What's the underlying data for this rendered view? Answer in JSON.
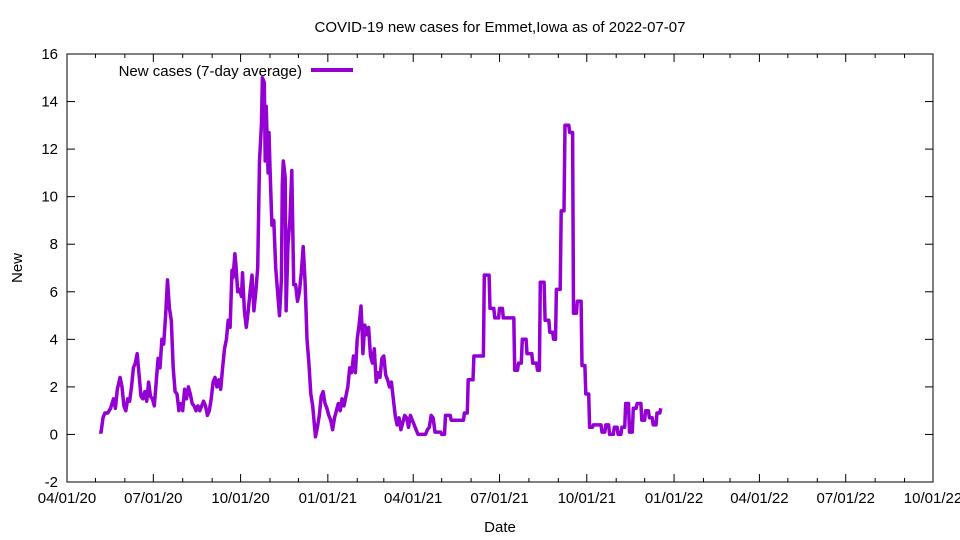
{
  "chart_data": {
    "type": "line",
    "title": "COVID-19 new cases for Emmet,Iowa as of 2022-07-07",
    "xlabel": "Date",
    "ylabel": "New",
    "ylim": [
      -2,
      16
    ],
    "yticks": [
      -2,
      0,
      2,
      4,
      6,
      8,
      10,
      12,
      14,
      16
    ],
    "xlim": [
      "2020-04-01",
      "2022-10-01"
    ],
    "xticks": [
      {
        "date": "2020-04-01",
        "label": "04/01/20"
      },
      {
        "date": "2020-07-01",
        "label": "07/01/20"
      },
      {
        "date": "2020-10-01",
        "label": "10/01/20"
      },
      {
        "date": "2021-01-01",
        "label": "01/01/21"
      },
      {
        "date": "2021-04-01",
        "label": "04/01/21"
      },
      {
        "date": "2021-07-01",
        "label": "07/01/21"
      },
      {
        "date": "2021-10-01",
        "label": "10/01/21"
      },
      {
        "date": "2022-01-01",
        "label": "01/01/22"
      },
      {
        "date": "2022-04-01",
        "label": "04/01/22"
      },
      {
        "date": "2022-07-01",
        "label": "07/01/22"
      },
      {
        "date": "2022-10-01",
        "label": "10/01/22"
      }
    ],
    "grid": false,
    "legend_position": "top-left",
    "series": [
      {
        "name": "New cases (7-day average)",
        "color": "#9400d3",
        "points": [
          [
            "2020-05-05",
            0.1
          ],
          [
            "2020-05-07",
            0.1
          ],
          [
            "2020-05-09",
            0.7
          ],
          [
            "2020-05-11",
            0.9
          ],
          [
            "2020-05-14",
            0.9
          ],
          [
            "2020-05-17",
            1.1
          ],
          [
            "2020-05-20",
            1.5
          ],
          [
            "2020-05-22",
            1.1
          ],
          [
            "2020-05-24",
            1.9
          ],
          [
            "2020-05-27",
            2.4
          ],
          [
            "2020-05-29",
            2.0
          ],
          [
            "2020-05-31",
            1.2
          ],
          [
            "2020-06-02",
            1.0
          ],
          [
            "2020-06-04",
            1.5
          ],
          [
            "2020-06-06",
            1.4
          ],
          [
            "2020-06-08",
            2.0
          ],
          [
            "2020-06-10",
            2.8
          ],
          [
            "2020-06-12",
            3.0
          ],
          [
            "2020-06-14",
            3.4
          ],
          [
            "2020-06-16",
            2.5
          ],
          [
            "2020-06-18",
            1.6
          ],
          [
            "2020-06-20",
            1.5
          ],
          [
            "2020-06-22",
            1.8
          ],
          [
            "2020-06-24",
            1.4
          ],
          [
            "2020-06-26",
            2.2
          ],
          [
            "2020-06-28",
            1.6
          ],
          [
            "2020-06-30",
            1.5
          ],
          [
            "2020-07-02",
            1.2
          ],
          [
            "2020-07-04",
            2.2
          ],
          [
            "2020-07-06",
            3.2
          ],
          [
            "2020-07-08",
            2.8
          ],
          [
            "2020-07-10",
            4.0
          ],
          [
            "2020-07-12",
            3.8
          ],
          [
            "2020-07-14",
            5.0
          ],
          [
            "2020-07-16",
            6.5
          ],
          [
            "2020-07-18",
            5.3
          ],
          [
            "2020-07-20",
            4.8
          ],
          [
            "2020-07-22",
            2.8
          ],
          [
            "2020-07-24",
            1.8
          ],
          [
            "2020-07-26",
            1.7
          ],
          [
            "2020-07-28",
            1.0
          ],
          [
            "2020-07-30",
            1.3
          ],
          [
            "2020-08-01",
            1.0
          ],
          [
            "2020-08-03",
            1.9
          ],
          [
            "2020-08-05",
            1.5
          ],
          [
            "2020-08-07",
            2.0
          ],
          [
            "2020-08-09",
            1.7
          ],
          [
            "2020-08-11",
            1.3
          ],
          [
            "2020-08-13",
            1.2
          ],
          [
            "2020-08-15",
            1.0
          ],
          [
            "2020-08-17",
            1.2
          ],
          [
            "2020-08-19",
            1.0
          ],
          [
            "2020-08-21",
            1.2
          ],
          [
            "2020-08-23",
            1.4
          ],
          [
            "2020-08-25",
            1.2
          ],
          [
            "2020-08-27",
            0.8
          ],
          [
            "2020-08-29",
            1.0
          ],
          [
            "2020-08-31",
            1.5
          ],
          [
            "2020-09-02",
            2.2
          ],
          [
            "2020-09-04",
            2.4
          ],
          [
            "2020-09-06",
            2.0
          ],
          [
            "2020-09-08",
            2.3
          ],
          [
            "2020-09-10",
            1.9
          ],
          [
            "2020-09-12",
            2.8
          ],
          [
            "2020-09-14",
            3.6
          ],
          [
            "2020-09-16",
            4.0
          ],
          [
            "2020-09-18",
            4.8
          ],
          [
            "2020-09-20",
            4.5
          ],
          [
            "2020-09-22",
            6.9
          ],
          [
            "2020-09-23",
            6.6
          ],
          [
            "2020-09-25",
            7.6
          ],
          [
            "2020-09-26",
            7.2
          ],
          [
            "2020-09-28",
            6.0
          ],
          [
            "2020-09-30",
            6.1
          ],
          [
            "2020-10-02",
            5.8
          ],
          [
            "2020-10-03",
            6.8
          ],
          [
            "2020-10-05",
            5.2
          ],
          [
            "2020-10-07",
            4.5
          ],
          [
            "2020-10-09",
            5.2
          ],
          [
            "2020-10-11",
            6.0
          ],
          [
            "2020-10-13",
            6.7
          ],
          [
            "2020-10-15",
            5.2
          ],
          [
            "2020-10-17",
            6.0
          ],
          [
            "2020-10-19",
            7.0
          ],
          [
            "2020-10-21",
            11.5
          ],
          [
            "2020-10-23",
            13.0
          ],
          [
            "2020-10-24",
            15.0
          ],
          [
            "2020-10-26",
            14.8
          ],
          [
            "2020-10-27",
            11.5
          ],
          [
            "2020-10-28",
            13.8
          ],
          [
            "2020-10-30",
            11.0
          ],
          [
            "2020-10-31",
            12.7
          ],
          [
            "2020-11-01",
            11.2
          ],
          [
            "2020-11-03",
            8.8
          ],
          [
            "2020-11-05",
            9.0
          ],
          [
            "2020-11-07",
            7.0
          ],
          [
            "2020-11-09",
            6.0
          ],
          [
            "2020-11-11",
            5.0
          ],
          [
            "2020-11-13",
            6.5
          ],
          [
            "2020-11-14",
            10.5
          ],
          [
            "2020-11-15",
            11.5
          ],
          [
            "2020-11-17",
            10.8
          ],
          [
            "2020-11-18",
            5.2
          ],
          [
            "2020-11-20",
            8.0
          ],
          [
            "2020-11-22",
            9.0
          ],
          [
            "2020-11-24",
            11.1
          ],
          [
            "2020-11-26",
            6.3
          ],
          [
            "2020-11-28",
            6.3
          ],
          [
            "2020-11-30",
            5.6
          ],
          [
            "2020-12-02",
            6.0
          ],
          [
            "2020-12-04",
            6.8
          ],
          [
            "2020-12-06",
            7.9
          ],
          [
            "2020-12-08",
            6.4
          ],
          [
            "2020-12-10",
            4.0
          ],
          [
            "2020-12-12",
            3.0
          ],
          [
            "2020-12-14",
            1.7
          ],
          [
            "2020-12-16",
            1.2
          ],
          [
            "2020-12-18",
            0.3
          ],
          [
            "2020-12-19",
            -0.1
          ],
          [
            "2020-12-21",
            0.3
          ],
          [
            "2020-12-23",
            0.8
          ],
          [
            "2020-12-25",
            1.6
          ],
          [
            "2020-12-27",
            1.8
          ],
          [
            "2020-12-29",
            1.3
          ],
          [
            "2020-12-31",
            1.1
          ],
          [
            "2021-01-02",
            0.8
          ],
          [
            "2021-01-04",
            0.6
          ],
          [
            "2021-01-06",
            0.2
          ],
          [
            "2021-01-08",
            0.7
          ],
          [
            "2021-01-10",
            1.0
          ],
          [
            "2021-01-12",
            1.3
          ],
          [
            "2021-01-14",
            1.0
          ],
          [
            "2021-01-16",
            1.5
          ],
          [
            "2021-01-18",
            1.2
          ],
          [
            "2021-01-20",
            1.6
          ],
          [
            "2021-01-22",
            2.0
          ],
          [
            "2021-01-24",
            2.8
          ],
          [
            "2021-01-26",
            2.6
          ],
          [
            "2021-01-28",
            3.3
          ],
          [
            "2021-01-30",
            2.6
          ],
          [
            "2021-02-01",
            4.0
          ],
          [
            "2021-02-03",
            4.6
          ],
          [
            "2021-02-05",
            5.4
          ],
          [
            "2021-02-06",
            4.5
          ],
          [
            "2021-02-07",
            3.4
          ],
          [
            "2021-02-09",
            4.6
          ],
          [
            "2021-02-11",
            4.2
          ],
          [
            "2021-02-13",
            4.5
          ],
          [
            "2021-02-15",
            3.3
          ],
          [
            "2021-02-17",
            3.0
          ],
          [
            "2021-02-19",
            3.6
          ],
          [
            "2021-02-21",
            2.2
          ],
          [
            "2021-02-23",
            2.6
          ],
          [
            "2021-02-25",
            2.4
          ],
          [
            "2021-02-27",
            3.2
          ],
          [
            "2021-03-01",
            3.3
          ],
          [
            "2021-03-03",
            2.5
          ],
          [
            "2021-03-05",
            2.3
          ],
          [
            "2021-03-07",
            2.0
          ],
          [
            "2021-03-09",
            2.2
          ],
          [
            "2021-03-11",
            1.5
          ],
          [
            "2021-03-13",
            0.8
          ],
          [
            "2021-03-15",
            0.4
          ],
          [
            "2021-03-17",
            0.7
          ],
          [
            "2021-03-19",
            0.2
          ],
          [
            "2021-03-21",
            0.5
          ],
          [
            "2021-03-23",
            0.8
          ],
          [
            "2021-03-25",
            0.7
          ],
          [
            "2021-03-27",
            0.3
          ],
          [
            "2021-03-29",
            0.8
          ],
          [
            "2021-03-31",
            0.6
          ],
          [
            "2021-04-02",
            0.4
          ],
          [
            "2021-04-04",
            0.2
          ],
          [
            "2021-04-06",
            0.0
          ],
          [
            "2021-04-10",
            0.0
          ],
          [
            "2021-04-14",
            0.0
          ],
          [
            "2021-04-16",
            0.2
          ],
          [
            "2021-04-18",
            0.3
          ],
          [
            "2021-04-20",
            0.8
          ],
          [
            "2021-04-22",
            0.7
          ],
          [
            "2021-04-24",
            0.1
          ],
          [
            "2021-04-30",
            0.1
          ],
          [
            "2021-05-01",
            0.0
          ],
          [
            "2021-05-04",
            0.0
          ],
          [
            "2021-05-05",
            0.8
          ],
          [
            "2021-05-10",
            0.8
          ],
          [
            "2021-05-11",
            0.6
          ],
          [
            "2021-05-24",
            0.6
          ],
          [
            "2021-05-25",
            0.9
          ],
          [
            "2021-05-28",
            0.9
          ],
          [
            "2021-05-29",
            2.3
          ],
          [
            "2021-06-03",
            2.3
          ],
          [
            "2021-06-04",
            3.3
          ],
          [
            "2021-06-14",
            3.3
          ],
          [
            "2021-06-15",
            6.7
          ],
          [
            "2021-06-20",
            6.7
          ],
          [
            "2021-06-21",
            5.3
          ],
          [
            "2021-06-25",
            5.3
          ],
          [
            "2021-06-26",
            4.9
          ],
          [
            "2021-06-30",
            4.9
          ],
          [
            "2021-07-01",
            5.3
          ],
          [
            "2021-07-04",
            5.3
          ],
          [
            "2021-07-05",
            4.9
          ],
          [
            "2021-07-16",
            4.9
          ],
          [
            "2021-07-17",
            2.7
          ],
          [
            "2021-07-20",
            2.7
          ],
          [
            "2021-07-21",
            3.0
          ],
          [
            "2021-07-24",
            3.0
          ],
          [
            "2021-07-25",
            4.0
          ],
          [
            "2021-07-29",
            4.0
          ],
          [
            "2021-07-30",
            3.4
          ],
          [
            "2021-08-04",
            3.4
          ],
          [
            "2021-08-05",
            3.0
          ],
          [
            "2021-08-09",
            3.0
          ],
          [
            "2021-08-10",
            2.7
          ],
          [
            "2021-08-12",
            2.7
          ],
          [
            "2021-08-13",
            6.4
          ],
          [
            "2021-08-17",
            6.4
          ],
          [
            "2021-08-18",
            4.8
          ],
          [
            "2021-08-22",
            4.8
          ],
          [
            "2021-08-23",
            4.3
          ],
          [
            "2021-08-26",
            4.3
          ],
          [
            "2021-08-27",
            4.0
          ],
          [
            "2021-08-29",
            4.0
          ],
          [
            "2021-08-30",
            6.1
          ],
          [
            "2021-09-03",
            6.1
          ],
          [
            "2021-09-04",
            9.4
          ],
          [
            "2021-09-07",
            9.4
          ],
          [
            "2021-09-08",
            13.0
          ],
          [
            "2021-09-12",
            13.0
          ],
          [
            "2021-09-13",
            12.7
          ],
          [
            "2021-09-16",
            12.7
          ],
          [
            "2021-09-17",
            5.1
          ],
          [
            "2021-09-20",
            5.1
          ],
          [
            "2021-09-21",
            5.6
          ],
          [
            "2021-09-25",
            5.6
          ],
          [
            "2021-09-26",
            2.9
          ],
          [
            "2021-09-29",
            2.9
          ],
          [
            "2021-09-30",
            1.7
          ],
          [
            "2021-10-03",
            1.7
          ],
          [
            "2021-10-04",
            0.3
          ],
          [
            "2021-10-07",
            0.3
          ],
          [
            "2021-10-08",
            0.4
          ],
          [
            "2021-10-16",
            0.4
          ],
          [
            "2021-10-17",
            0.1
          ],
          [
            "2021-10-20",
            0.1
          ],
          [
            "2021-10-21",
            0.4
          ],
          [
            "2021-10-24",
            0.4
          ],
          [
            "2021-10-25",
            0.0
          ],
          [
            "2021-10-29",
            0.0
          ],
          [
            "2021-10-30",
            0.3
          ],
          [
            "2021-11-02",
            0.3
          ],
          [
            "2021-11-03",
            0.0
          ],
          [
            "2021-11-06",
            0.0
          ],
          [
            "2021-11-07",
            0.3
          ],
          [
            "2021-11-10",
            0.3
          ],
          [
            "2021-11-11",
            1.3
          ],
          [
            "2021-11-14",
            1.3
          ],
          [
            "2021-11-15",
            0.1
          ],
          [
            "2021-11-18",
            0.1
          ],
          [
            "2021-11-19",
            1.1
          ],
          [
            "2021-11-22",
            1.1
          ],
          [
            "2021-11-23",
            1.3
          ],
          [
            "2021-11-27",
            1.3
          ],
          [
            "2021-11-28",
            0.6
          ],
          [
            "2021-12-01",
            0.6
          ],
          [
            "2021-12-02",
            1.0
          ],
          [
            "2021-12-05",
            1.0
          ],
          [
            "2021-12-06",
            0.7
          ],
          [
            "2021-12-09",
            0.7
          ],
          [
            "2021-12-10",
            0.4
          ],
          [
            "2021-12-13",
            0.4
          ],
          [
            "2021-12-14",
            0.9
          ],
          [
            "2021-12-17",
            0.9
          ],
          [
            "2021-12-18",
            1.1
          ]
        ]
      }
    ]
  }
}
